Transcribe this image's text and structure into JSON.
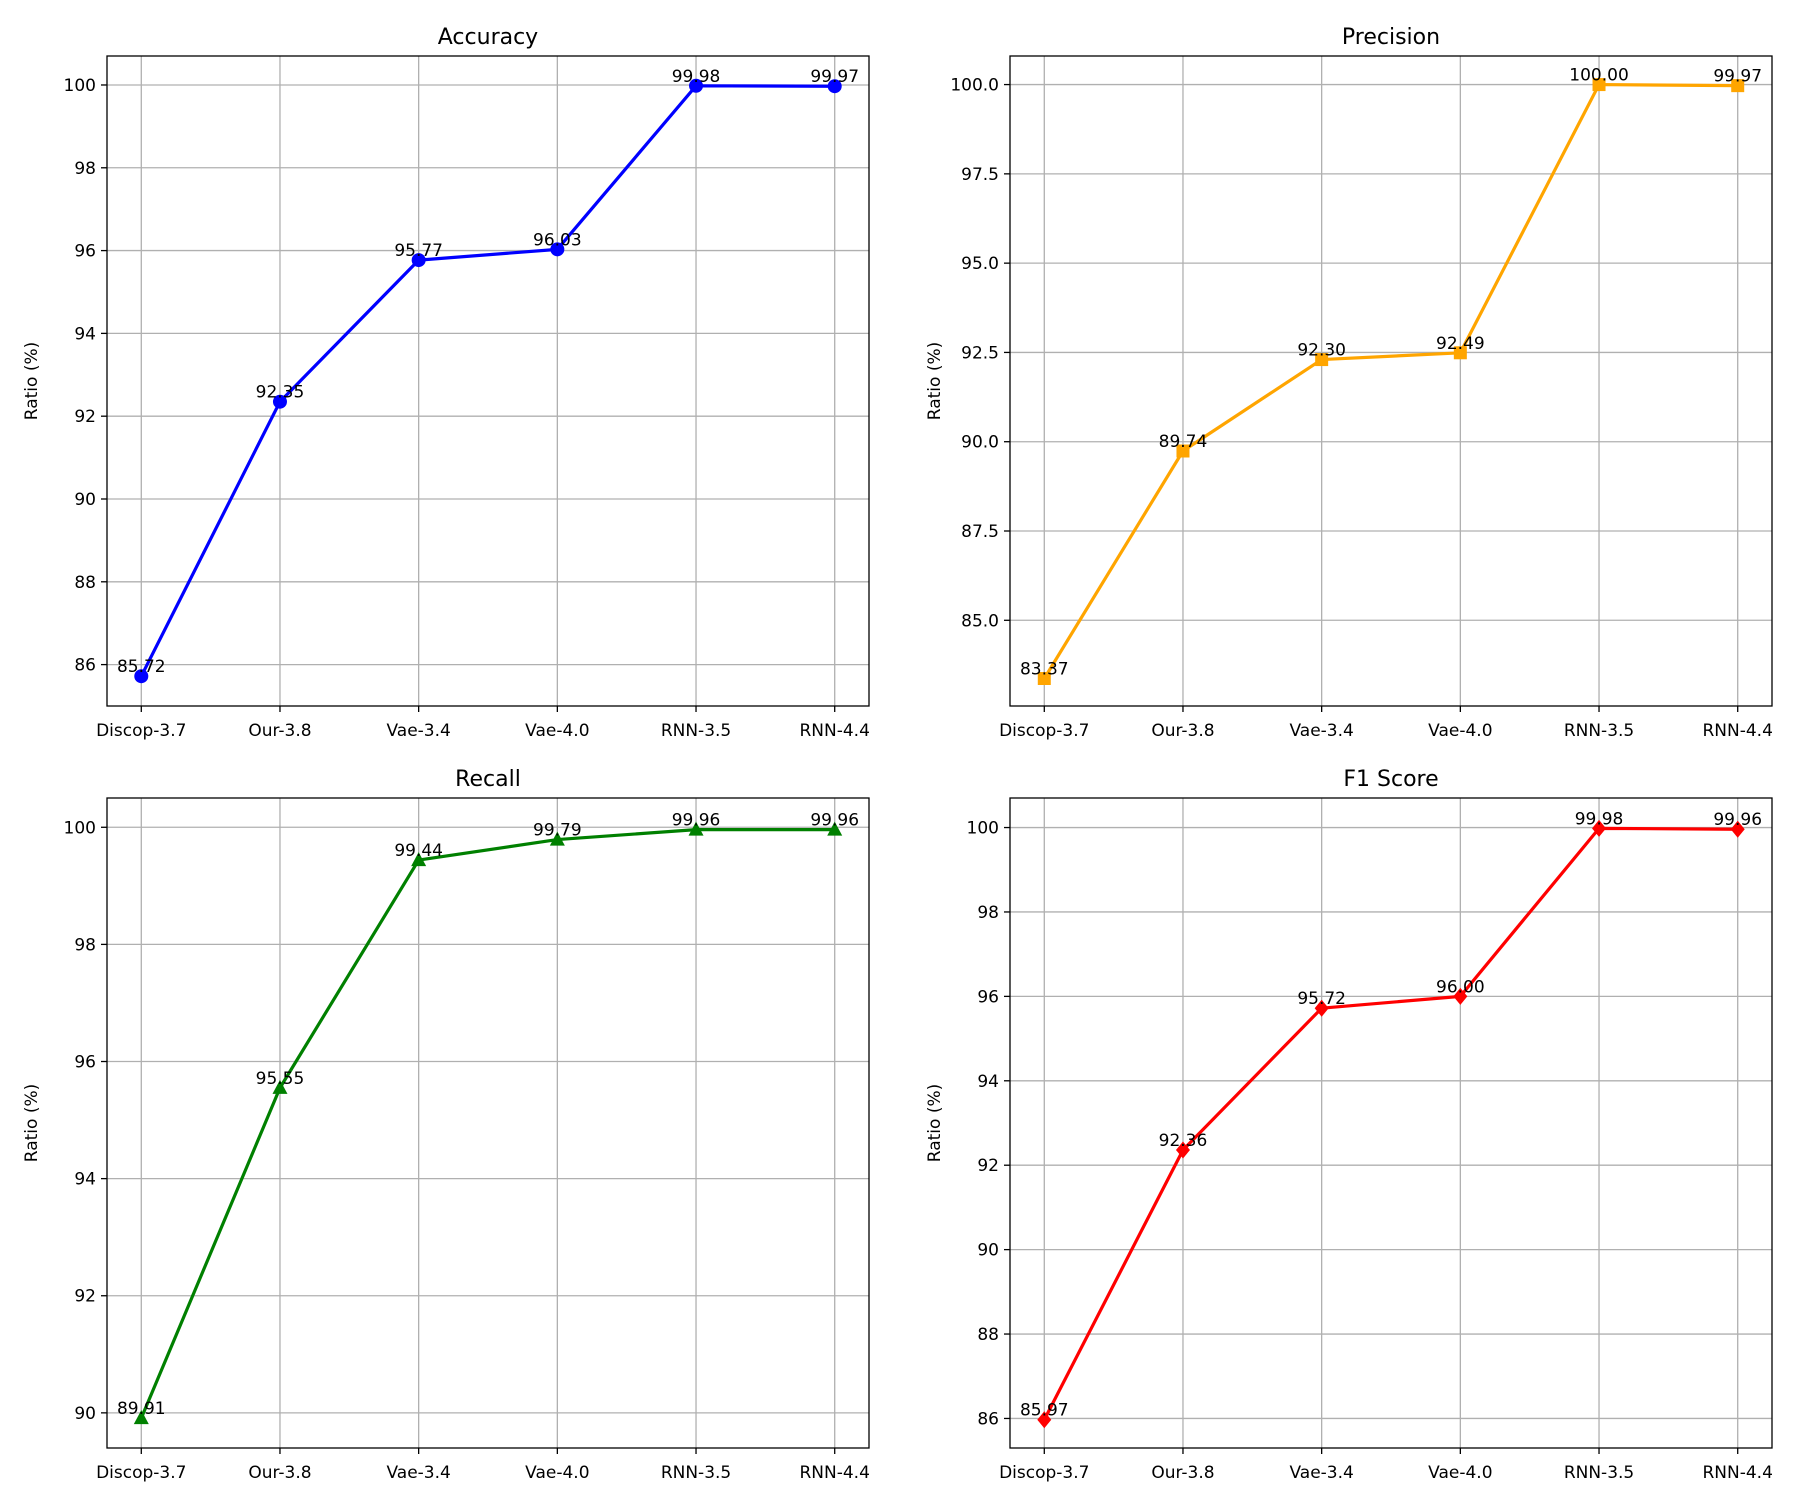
{
  "chart_data": [
    {
      "type": "line",
      "title": "Accuracy",
      "xlabel": "",
      "ylabel": "Ratio (%)",
      "categories": [
        "Discop-3.7",
        "Our-3.8",
        "Vae-3.4",
        "Vae-4.0",
        "RNN-3.5",
        "RNN-4.4"
      ],
      "values": [
        85.72,
        92.35,
        95.77,
        96.03,
        99.98,
        99.97
      ],
      "value_labels": [
        "85.72",
        "92.35",
        "95.77",
        "96.03",
        "99.98",
        "99.97"
      ],
      "ylim": [
        85.0,
        100.7
      ],
      "yticks": [
        86,
        88,
        90,
        92,
        94,
        96,
        98,
        100
      ],
      "ytick_labels": [
        "86",
        "88",
        "90",
        "92",
        "94",
        "96",
        "98",
        "100"
      ],
      "color": "#0000ff",
      "marker": "circle",
      "grid": true
    },
    {
      "type": "line",
      "title": "Precision",
      "xlabel": "",
      "ylabel": "Ratio (%)",
      "categories": [
        "Discop-3.7",
        "Our-3.8",
        "Vae-3.4",
        "Vae-4.0",
        "RNN-3.5",
        "RNN-4.4"
      ],
      "values": [
        83.37,
        89.74,
        92.3,
        92.49,
        100.0,
        99.97
      ],
      "value_labels": [
        "83.37",
        "89.74",
        "92.30",
        "92.49",
        "100.00",
        "99.97"
      ],
      "ylim": [
        82.6,
        100.8
      ],
      "yticks": [
        85.0,
        87.5,
        90.0,
        92.5,
        95.0,
        97.5,
        100.0
      ],
      "ytick_labels": [
        "85.0",
        "87.5",
        "90.0",
        "92.5",
        "95.0",
        "97.5",
        "100.0"
      ],
      "color": "#ffa500",
      "marker": "square",
      "grid": true
    },
    {
      "type": "line",
      "title": "Recall",
      "xlabel": "",
      "ylabel": "Ratio (%)",
      "categories": [
        "Discop-3.7",
        "Our-3.8",
        "Vae-3.4",
        "Vae-4.0",
        "RNN-3.5",
        "RNN-4.4"
      ],
      "values": [
        89.91,
        95.55,
        99.44,
        99.79,
        99.96,
        99.96
      ],
      "value_labels": [
        "89.91",
        "95.55",
        "99.44",
        "99.79",
        "99.96",
        "99.96"
      ],
      "ylim": [
        89.4,
        100.5
      ],
      "yticks": [
        90,
        92,
        94,
        96,
        98,
        100
      ],
      "ytick_labels": [
        "90",
        "92",
        "94",
        "96",
        "98",
        "100"
      ],
      "color": "#008000",
      "marker": "triangle",
      "grid": true
    },
    {
      "type": "line",
      "title": "F1 Score",
      "xlabel": "",
      "ylabel": "Ratio (%)",
      "categories": [
        "Discop-3.7",
        "Our-3.8",
        "Vae-3.4",
        "Vae-4.0",
        "RNN-3.5",
        "RNN-4.4"
      ],
      "values": [
        85.97,
        92.36,
        95.72,
        96.0,
        99.98,
        99.96
      ],
      "value_labels": [
        "85.97",
        "92.36",
        "95.72",
        "96.00",
        "99.98",
        "99.96"
      ],
      "ylim": [
        85.3,
        100.7
      ],
      "yticks": [
        86,
        88,
        90,
        92,
        94,
        96,
        98,
        100
      ],
      "ytick_labels": [
        "86",
        "88",
        "90",
        "92",
        "94",
        "96",
        "98",
        "100"
      ],
      "color": "#ff0000",
      "marker": "diamond",
      "grid": true
    }
  ]
}
